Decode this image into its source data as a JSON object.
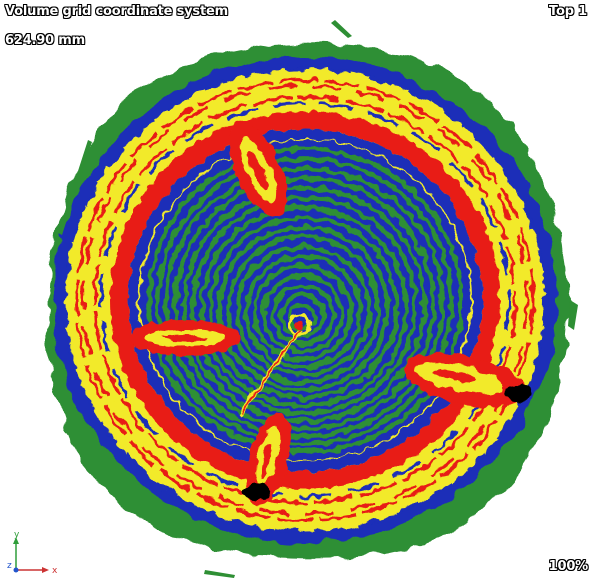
{
  "viewer": {
    "title": "Volume grid coordinate system",
    "measurement": "624.90 mm",
    "view_label": "Top 1",
    "zoom": "100%"
  },
  "axes": {
    "y_label": "y",
    "z_label": "z",
    "x_label": "x",
    "colors": {
      "y": "#2f9e3a",
      "z": "#2255cc",
      "x": "#cc3333"
    }
  },
  "colors": {
    "green": "#2e8f34",
    "blue": "#1a2fb8",
    "yellow": "#f2ea2a",
    "red": "#e81e14",
    "black": "#000000"
  }
}
